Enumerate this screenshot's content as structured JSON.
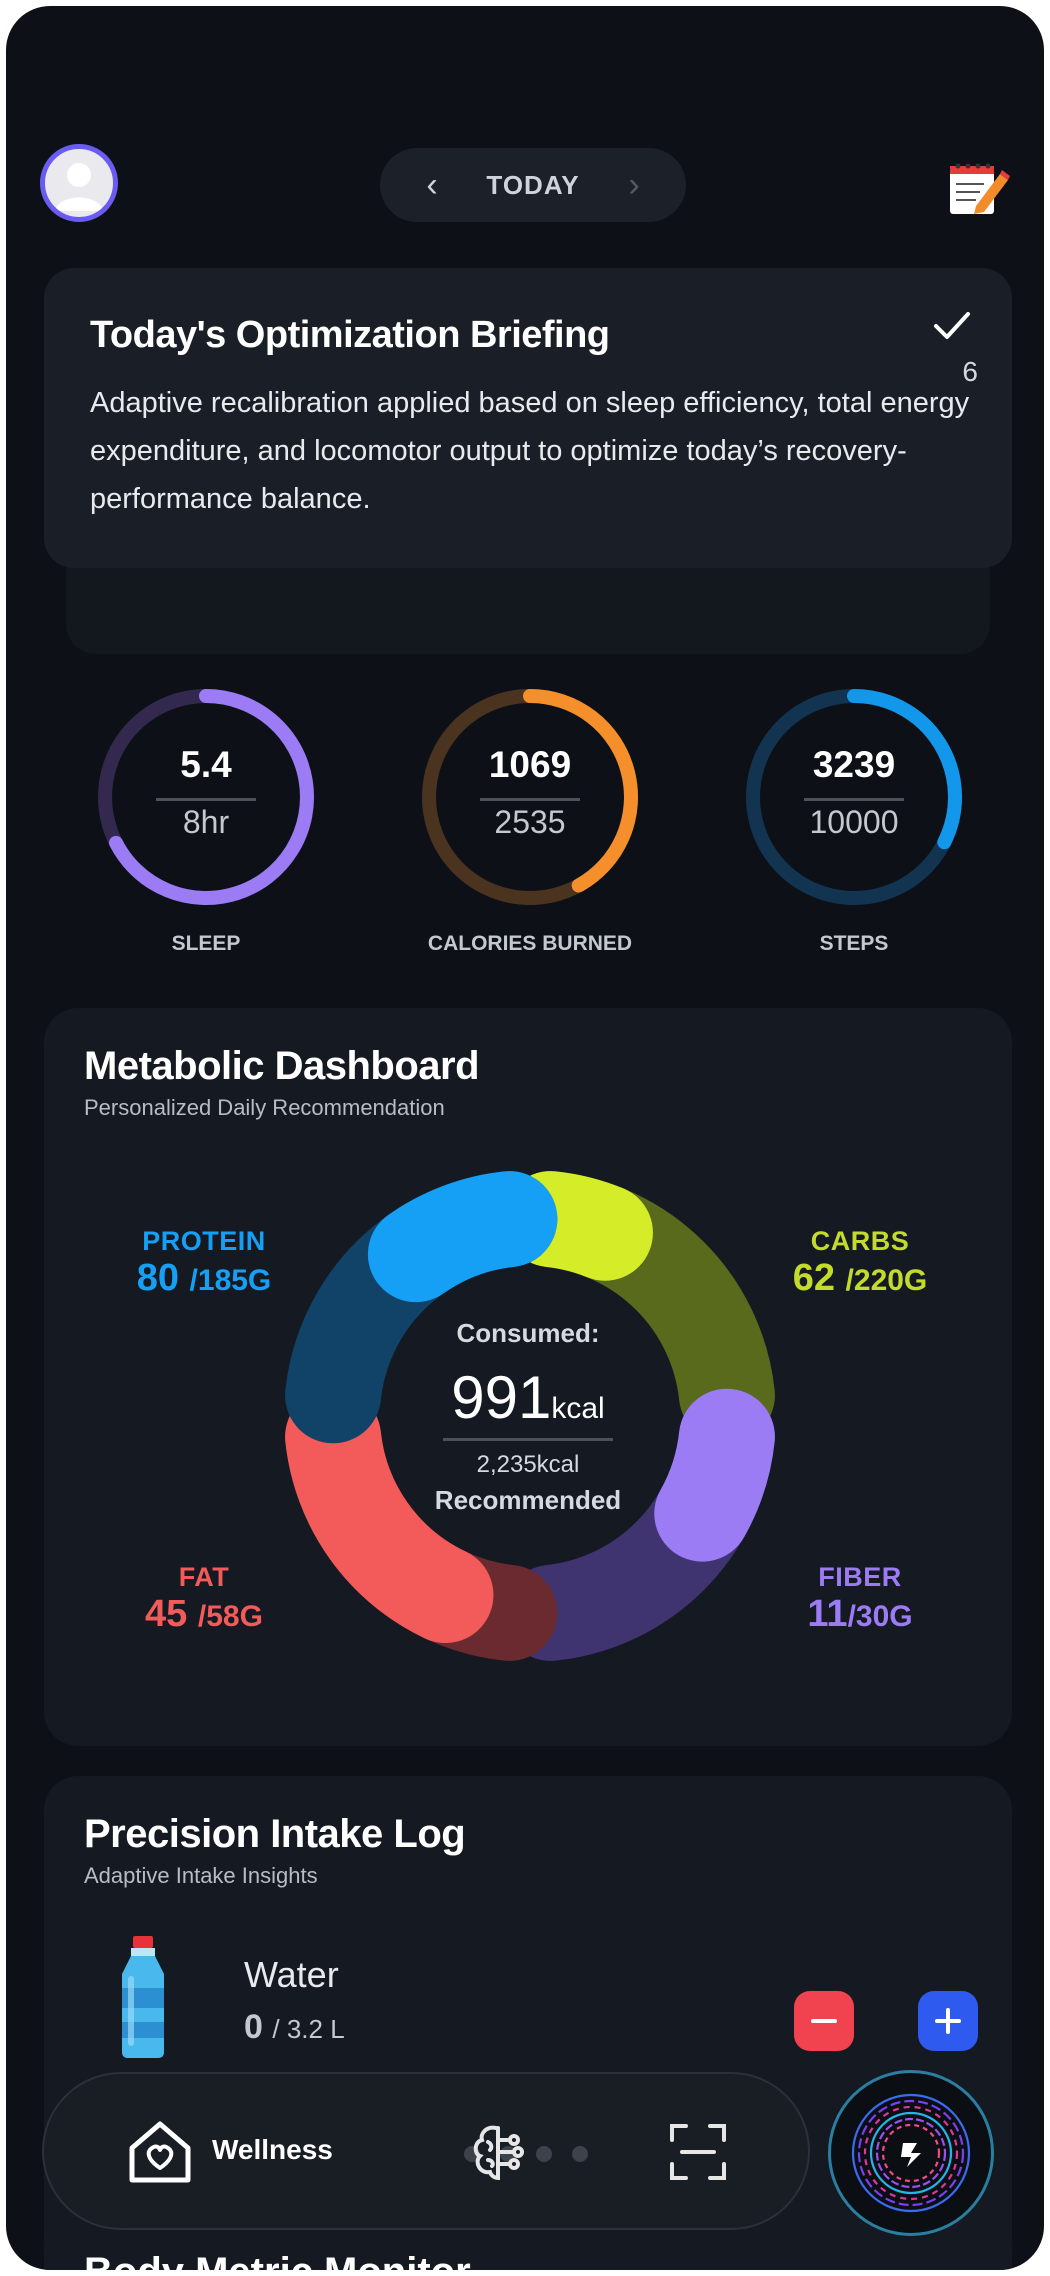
{
  "header": {
    "date_label": "TODAY",
    "prev": "‹",
    "next": "›",
    "avatar_icon": "user-avatar-icon",
    "edit_icon": "notepad-edit-icon"
  },
  "briefing": {
    "title": "Today's Optimization Briefing",
    "text": "Adaptive recalibration applied based on sleep efficiency, total energy expenditure, and locomotor output to optimize today’s recovery-performance balance.",
    "count": "6"
  },
  "rings": [
    {
      "value": "5.4",
      "goal": "8hr",
      "label": "SLEEP",
      "fraction": 0.675,
      "color": "#9b7cf4",
      "track": "#33294f"
    },
    {
      "value": "1069",
      "goal": "2535",
      "label": "CALORIES BURNED",
      "fraction": 0.42,
      "color": "#f58f2c",
      "track": "#4a3420"
    },
    {
      "value": "3239",
      "goal": "10000",
      "label": "STEPS",
      "fraction": 0.3239,
      "color": "#1397ea",
      "track": "#133451"
    }
  ],
  "metabolic": {
    "title": "Metabolic Dashboard",
    "subtitle": "Personalized Daily Recommendation",
    "consumed_label": "Consumed:",
    "consumed_value": "991",
    "consumed_unit": "kcal",
    "recommended_value": "2,235kcal",
    "recommended_label": "Recommended",
    "macros": {
      "protein": {
        "name": "PROTEIN",
        "value": "80",
        "goal": "/185G",
        "consumed": 80,
        "target": 185,
        "color": "#15a0f5",
        "track": "#114267"
      },
      "carbs": {
        "name": "CARBS",
        "value": "62",
        "goal": "/220G",
        "consumed": 62,
        "target": 220,
        "color": "#d4ed28",
        "track": "#596a1d"
      },
      "fat": {
        "name": "FAT",
        "value": "45",
        "goal": "/58G",
        "consumed": 45,
        "target": 58,
        "color": "#f35a5a",
        "track": "#6b2a30"
      },
      "fiber": {
        "name": "FIBER",
        "value": "11",
        "goal": "/30G",
        "consumed": 11,
        "target": 30,
        "color": "#9c7cf4",
        "track": "#3f3370"
      }
    }
  },
  "intake": {
    "title": "Precision Intake Log",
    "subtitle": "Adaptive Intake Insights",
    "water": {
      "name": "Water",
      "value": "0",
      "goal": "/ 3.2 L",
      "icon": "water-bottle-icon"
    }
  },
  "body_metric": {
    "title": "Body Metric Monitor"
  },
  "nav": {
    "wellness_label": "Wellness",
    "icons": [
      "home-heart-icon",
      "brain-icon",
      "scan-icon",
      "ai-assistant-icon"
    ]
  }
}
